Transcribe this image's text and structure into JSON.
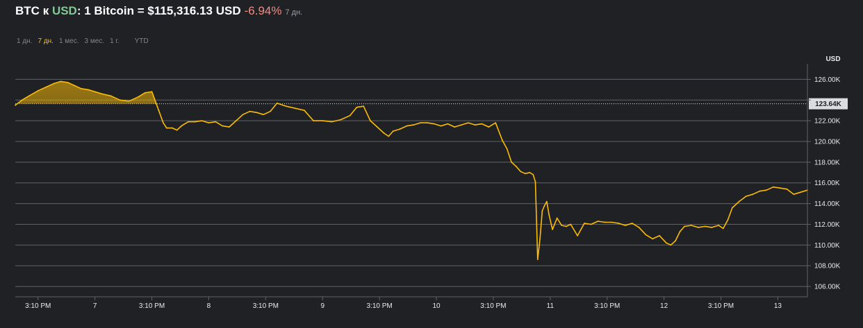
{
  "header": {
    "base": "BTC",
    "connector": "к",
    "quote": "USD",
    "rate_prefix": ": 1 Bitcoin = ",
    "price": "$115,316.13 USD",
    "change": "-6.94%",
    "period": "7 дн."
  },
  "tabs": [
    {
      "label": "1 дн.",
      "active": false
    },
    {
      "label": "7 дн.",
      "active": true
    },
    {
      "label": "1 мес.",
      "active": false
    },
    {
      "label": "3 мес.",
      "active": false
    },
    {
      "label": "1 г.",
      "active": false
    },
    {
      "label": "YTD",
      "active": false
    }
  ],
  "colors": {
    "background": "#202124",
    "line": "#fbbc04",
    "grid": "#5f6368",
    "text": "#e8eaed",
    "positive": "#81c995",
    "negative": "#f28b82",
    "muted": "#80868b"
  },
  "chart_data": {
    "type": "line",
    "title": "",
    "xlabel": "",
    "ylabel": "USD",
    "ylim": [
      105,
      127.5
    ],
    "y_ticks": [
      106,
      108,
      110,
      112,
      114,
      116,
      118,
      120,
      122,
      124,
      126
    ],
    "y_tick_labels": [
      "106.00K",
      "108.00K",
      "110.00K",
      "112.00K",
      "114.00K",
      "116.00K",
      "118.00K",
      "120.00K",
      "122.00K",
      "",
      "126.00K"
    ],
    "reference_line": {
      "value": 123.64,
      "label": "123.64K"
    },
    "x_range_days": [
      0,
      6.96
    ],
    "x_ticks": [
      {
        "day": 0.2,
        "label": "3:10 PM"
      },
      {
        "day": 0.7,
        "label": "7"
      },
      {
        "day": 1.2,
        "label": "3:10 PM"
      },
      {
        "day": 1.7,
        "label": "8"
      },
      {
        "day": 2.2,
        "label": "3:10 PM"
      },
      {
        "day": 2.7,
        "label": "9"
      },
      {
        "day": 3.2,
        "label": "3:10 PM"
      },
      {
        "day": 3.7,
        "label": "10"
      },
      {
        "day": 4.2,
        "label": "3:10 PM"
      },
      {
        "day": 4.7,
        "label": "11"
      },
      {
        "day": 5.2,
        "label": "3:10 PM"
      },
      {
        "day": 5.7,
        "label": "12"
      },
      {
        "day": 6.2,
        "label": "3:10 PM"
      },
      {
        "day": 6.7,
        "label": "13"
      }
    ],
    "series": [
      {
        "name": "",
        "unit": "K USD",
        "x_days": [
          0,
          0.06,
          0.12,
          0.2,
          0.28,
          0.34,
          0.4,
          0.46,
          0.52,
          0.58,
          0.64,
          0.7,
          0.76,
          0.84,
          0.92,
          1.0,
          1.08,
          1.14,
          1.2,
          1.26,
          1.3,
          1.33,
          1.38,
          1.42,
          1.46,
          1.52,
          1.58,
          1.64,
          1.7,
          1.76,
          1.82,
          1.88,
          1.94,
          2.0,
          2.06,
          2.12,
          2.18,
          2.24,
          2.3,
          2.38,
          2.46,
          2.54,
          2.62,
          2.7,
          2.78,
          2.86,
          2.94,
          3.0,
          3.06,
          3.12,
          3.18,
          3.24,
          3.28,
          3.32,
          3.38,
          3.44,
          3.5,
          3.56,
          3.62,
          3.68,
          3.74,
          3.8,
          3.86,
          3.92,
          3.98,
          4.04,
          4.1,
          4.16,
          4.22,
          4.28,
          4.32,
          4.36,
          4.4,
          4.44,
          4.48,
          4.52,
          4.55,
          4.57,
          4.59,
          4.61,
          4.63,
          4.65,
          4.67,
          4.69,
          4.72,
          4.76,
          4.8,
          4.84,
          4.88,
          4.94,
          5.0,
          5.06,
          5.12,
          5.18,
          5.24,
          5.3,
          5.36,
          5.42,
          5.48,
          5.54,
          5.6,
          5.66,
          5.72,
          5.76,
          5.8,
          5.84,
          5.88,
          5.94,
          6.0,
          6.06,
          6.12,
          6.18,
          6.22,
          6.26,
          6.3,
          6.36,
          6.42,
          6.48,
          6.54,
          6.6,
          6.66,
          6.72,
          6.78,
          6.84,
          6.9,
          6.96
        ],
        "values": [
          123.5,
          124.0,
          124.4,
          124.9,
          125.3,
          125.6,
          125.8,
          125.7,
          125.4,
          125.1,
          125.0,
          124.8,
          124.6,
          124.4,
          124.0,
          123.9,
          124.3,
          124.7,
          124.8,
          123.0,
          121.8,
          121.3,
          121.3,
          121.1,
          121.5,
          121.9,
          121.9,
          122.0,
          121.8,
          121.9,
          121.5,
          121.4,
          122.0,
          122.6,
          122.9,
          122.8,
          122.6,
          122.9,
          123.7,
          123.4,
          123.2,
          123.0,
          122.0,
          122.0,
          121.9,
          122.1,
          122.5,
          123.3,
          123.4,
          122.0,
          121.4,
          120.8,
          120.5,
          121.0,
          121.2,
          121.5,
          121.6,
          121.8,
          121.8,
          121.7,
          121.5,
          121.7,
          121.4,
          121.6,
          121.8,
          121.6,
          121.7,
          121.4,
          121.8,
          120.1,
          119.3,
          118.0,
          117.6,
          117.1,
          116.9,
          117.0,
          116.8,
          116.1,
          108.6,
          110.6,
          113.3,
          113.8,
          114.2,
          112.9,
          111.5,
          112.6,
          111.9,
          111.8,
          112.0,
          110.9,
          112.1,
          112.0,
          112.3,
          112.2,
          112.2,
          112.1,
          111.9,
          112.1,
          111.7,
          111.0,
          110.6,
          110.9,
          110.2,
          110.0,
          110.4,
          111.3,
          111.8,
          111.9,
          111.7,
          111.8,
          111.7,
          111.9,
          111.6,
          112.4,
          113.6,
          114.2,
          114.7,
          114.9,
          115.2,
          115.3,
          115.6,
          115.5,
          115.4,
          114.9,
          115.1,
          115.3
        ]
      }
    ]
  }
}
